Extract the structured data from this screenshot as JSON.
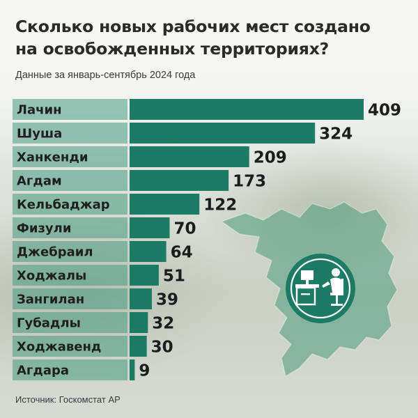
{
  "header": {
    "title_line1": "Сколько новых рабочих мест создано",
    "title_line2": "на освобожденных территориях?",
    "subtitle": "Данные за январь-сентябрь 2024 года"
  },
  "footer": {
    "source": "Источник: Госкомстат АР"
  },
  "colors": {
    "bar": "#1d7a64",
    "label_band": "rgba(70,155,130,0.55)",
    "icon_circle": "#1d7a64",
    "map_fill": "#4f9a7b"
  },
  "icons": {
    "badge": "worker-at-desk-icon"
  },
  "chart_data": {
    "type": "bar",
    "orientation": "horizontal",
    "title": "Сколько новых рабочих мест создано на освобожденных территориях?",
    "subtitle": "Данные за январь-сентябрь 2024 года",
    "categories": [
      "Лачин",
      "Шуша",
      "Ханкенди",
      "Агдам",
      "Кельбаджар",
      "Физули",
      "Джебраил",
      "Ходжалы",
      "Зангилан",
      "Губадлы",
      "Ходжавенд",
      "Агдара"
    ],
    "values": [
      409,
      324,
      209,
      173,
      122,
      70,
      64,
      51,
      39,
      32,
      30,
      9
    ],
    "xlim": [
      0,
      409
    ],
    "grid": false,
    "legend": "none"
  }
}
